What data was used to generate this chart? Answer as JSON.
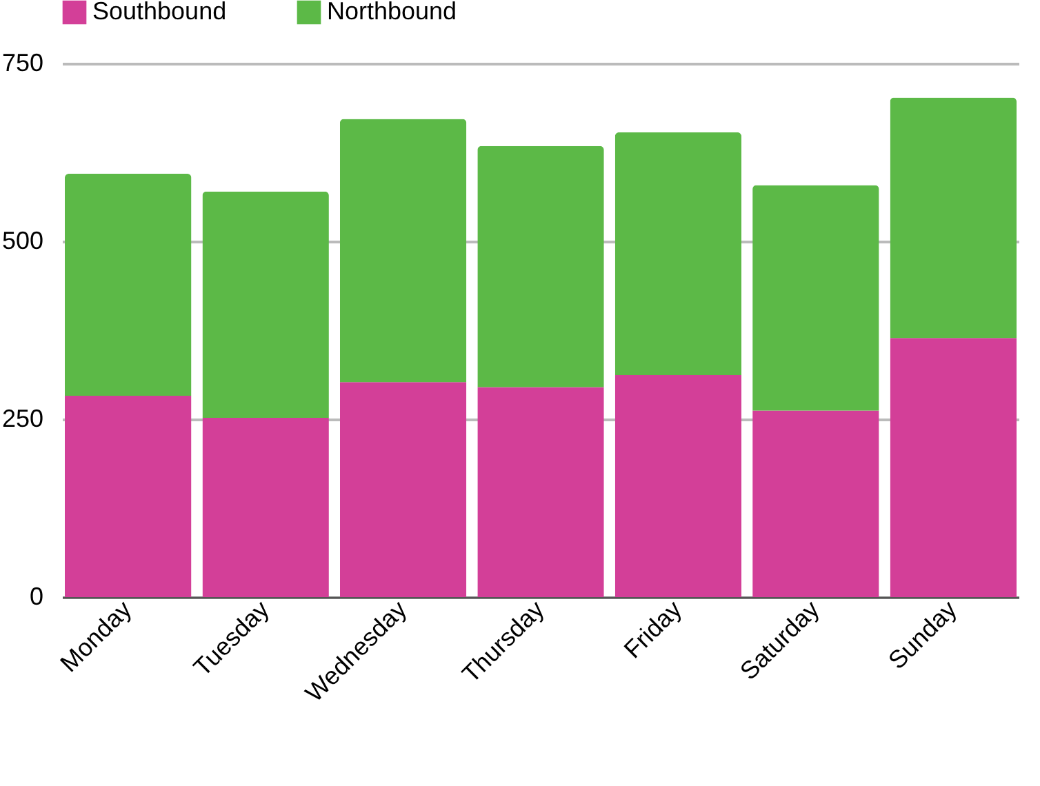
{
  "chart_data": {
    "type": "bar",
    "stacked": true,
    "categories": [
      "Monday",
      "Tuesday",
      "Wednesday",
      "Thursday",
      "Friday",
      "Saturday",
      "Sunday"
    ],
    "series": [
      {
        "name": "Southbound",
        "color": "#d33f98",
        "values": [
          283,
          252,
          302,
          295,
          312,
          262,
          364
        ]
      },
      {
        "name": "Northbound",
        "color": "#5cb947",
        "values": [
          312,
          318,
          370,
          339,
          341,
          317,
          338
        ]
      }
    ],
    "ylim": [
      0,
      750
    ],
    "yticks": [
      0,
      250,
      500,
      750
    ],
    "grid": "y",
    "legend": "top"
  }
}
